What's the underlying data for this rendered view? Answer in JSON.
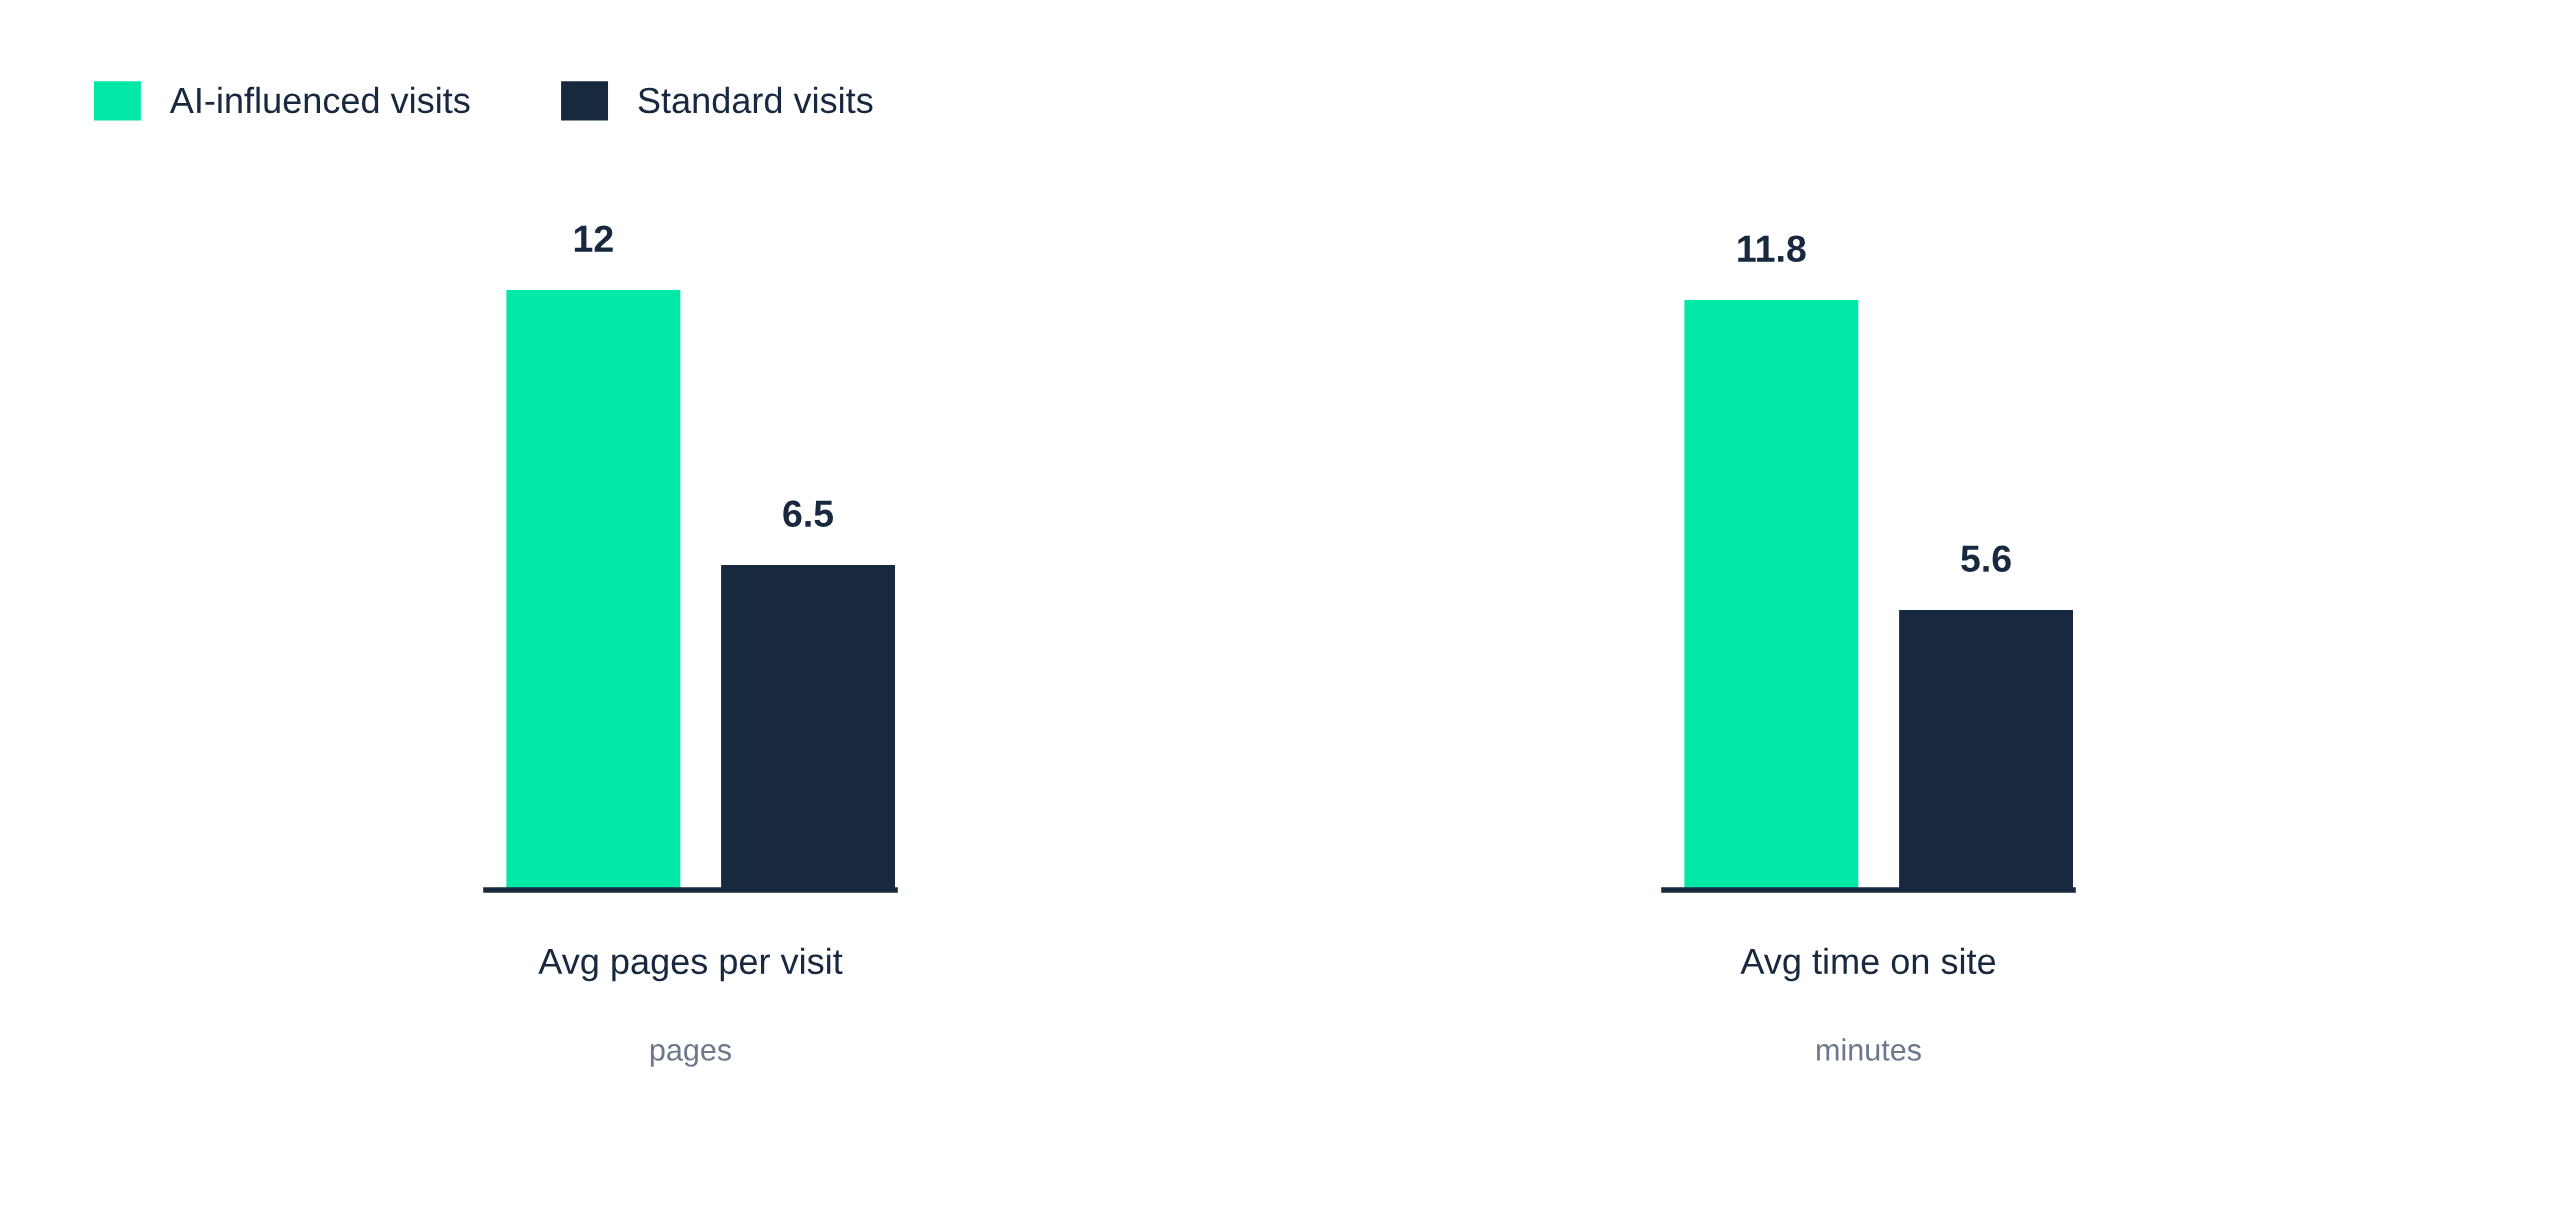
{
  "chart_data": [
    {
      "type": "bar",
      "categories": [
        null
      ],
      "xlabel": "Avg pages per visit",
      "annotations": [
        "pages"
      ],
      "data_labels": true,
      "legend": "top left",
      "series": [
        {
          "name": "AI-influenced visits",
          "color": "#00e8a6",
          "values": [
            12
          ]
        },
        {
          "name": "Standard visits",
          "color": "#17283f",
          "values": [
            6.5
          ]
        }
      ]
    },
    {
      "type": "bar",
      "categories": [
        null
      ],
      "xlabel": "Avg time on site",
      "annotations": [
        "minutes"
      ],
      "data_labels": true,
      "series": [
        {
          "color": "#00e8a6",
          "values": [
            11.8
          ]
        },
        {
          "color": "#17283f",
          "values": [
            5.6
          ]
        }
      ]
    }
  ]
}
